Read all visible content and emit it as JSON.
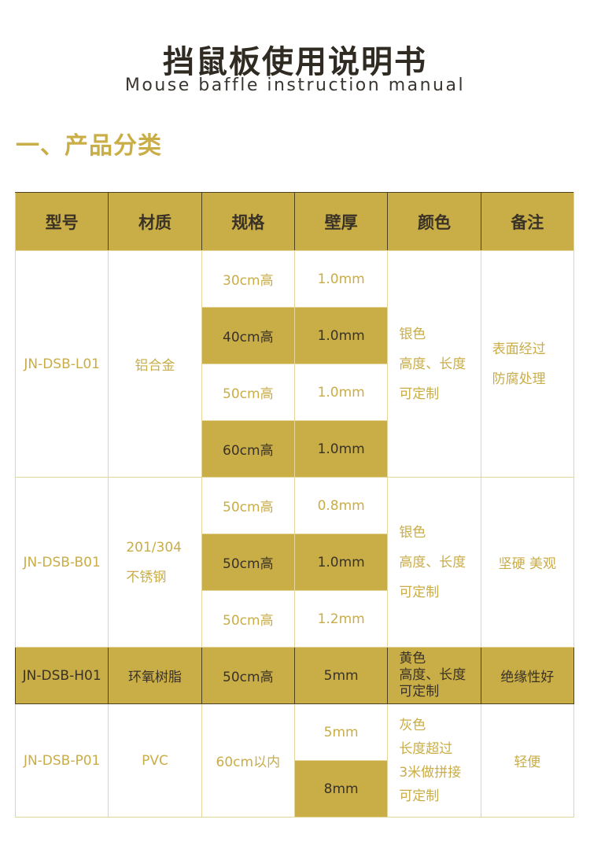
{
  "title": "挡鼠板使用说明书",
  "subtitle": "Mouse baffle instruction manual",
  "section": "一、产品分类",
  "colors": {
    "gold": "#c9ae47",
    "dark_text": "#3a3226",
    "border": "#e6d59a"
  },
  "headers": [
    "型号",
    "材质",
    "规格",
    "壁厚",
    "颜色",
    "备注"
  ],
  "groups": [
    {
      "model": "JN-DSB-L01",
      "material": "铝合金",
      "rows": [
        {
          "spec": "30cm高",
          "thick": "1.0mm"
        },
        {
          "spec": "40cm高",
          "thick": "1.0mm"
        },
        {
          "spec": "50cm高",
          "thick": "1.0mm"
        },
        {
          "spec": "60cm高",
          "thick": "1.0mm"
        }
      ],
      "color": [
        "银色",
        "高度、长度",
        "可定制"
      ],
      "note": [
        "表面经过",
        "防腐处理"
      ]
    },
    {
      "model": "JN-DSB-B01",
      "material": [
        "201/304",
        "不锈钢"
      ],
      "rows": [
        {
          "spec": "50cm高",
          "thick": "0.8mm"
        },
        {
          "spec": "50cm高",
          "thick": "1.0mm"
        },
        {
          "spec": "50cm高",
          "thick": "1.2mm"
        }
      ],
      "color": [
        "银色",
        "高度、长度",
        "可定制"
      ],
      "note": "坚硬 美观"
    },
    {
      "model": "JN-DSB-H01",
      "material": "环氧树脂",
      "spec": "50cm高",
      "thick": "5mm",
      "color": [
        "黄色",
        "高度、长度",
        "可定制"
      ],
      "note": "绝缘性好"
    },
    {
      "model": "JN-DSB-P01",
      "material": "PVC",
      "spec": "60cm以内",
      "thicks": [
        "5mm",
        "8mm"
      ],
      "color": [
        "灰色",
        "长度超过",
        "3米做拼接",
        "可定制"
      ],
      "note": "轻便"
    }
  ]
}
